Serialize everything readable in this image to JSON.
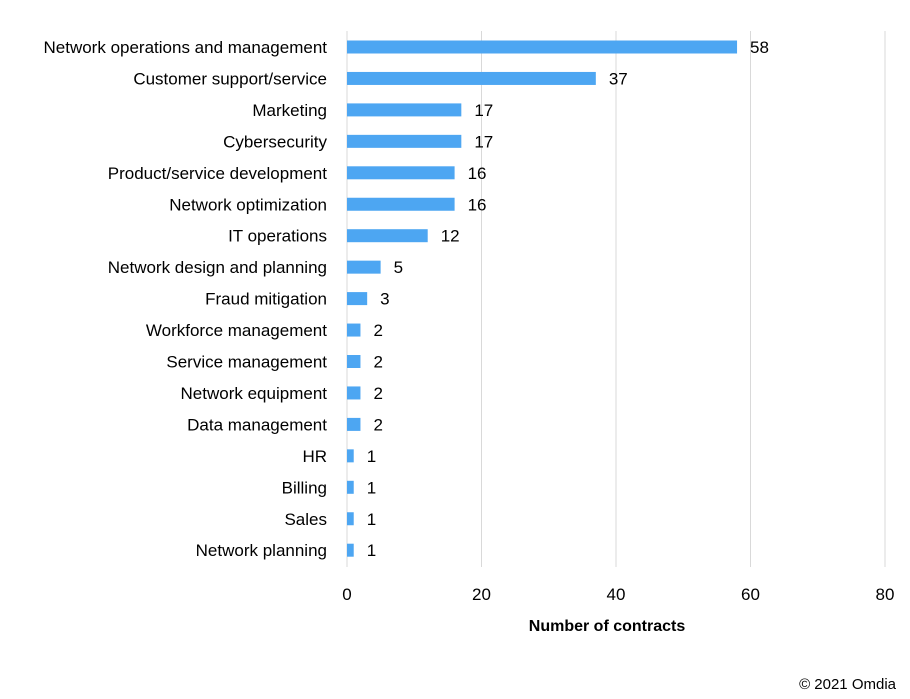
{
  "chart_data": {
    "type": "bar",
    "orientation": "horizontal",
    "categories": [
      "Network operations and management",
      "Customer support/service",
      "Marketing",
      "Cybersecurity",
      "Product/service development",
      "Network optimization",
      "IT operations",
      "Network design and planning",
      "Fraud mitigation",
      "Workforce management",
      "Service management",
      "Network equipment",
      "Data management",
      "HR",
      "Billing",
      "Sales",
      "Network planning"
    ],
    "values": [
      58,
      37,
      17,
      17,
      16,
      16,
      12,
      5,
      3,
      2,
      2,
      2,
      2,
      1,
      1,
      1,
      1
    ],
    "xlabel": "Number of contracts",
    "ylabel": "",
    "xlim": [
      0,
      80
    ],
    "xticks": [
      0,
      20,
      40,
      60,
      80
    ],
    "grid": "vertical",
    "bar_color": "#4da6f2",
    "grid_color": "#d9d9d9",
    "data_labels": true
  },
  "footer": {
    "copyright": "© 2021 Omdia"
  }
}
